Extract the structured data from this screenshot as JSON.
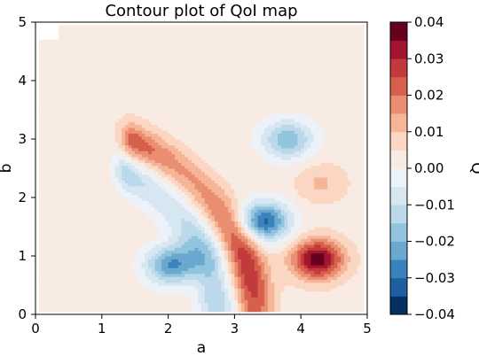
{
  "chart_data": {
    "type": "contour",
    "title": "Contour plot of QoI map",
    "xlabel": "a",
    "ylabel": "b",
    "xlim": [
      0,
      5
    ],
    "ylim": [
      0,
      5
    ],
    "x_ticks": [
      "0",
      "1",
      "2",
      "3",
      "4",
      "5"
    ],
    "y_ticks": [
      "0",
      "1",
      "2",
      "3",
      "4",
      "5"
    ],
    "colormap": "RdBu_r",
    "colorbar": {
      "label": "Q",
      "range": [
        -0.04,
        0.04
      ],
      "ticks": [
        "0.04",
        "0.03",
        "0.02",
        "0.01",
        "0.00",
        "−0.01",
        "−0.02",
        "−0.03",
        "−0.04"
      ],
      "levels": [
        -0.04,
        -0.035,
        -0.03,
        -0.025,
        -0.02,
        -0.015,
        -0.01,
        -0.005,
        0,
        0.005,
        0.01,
        0.015,
        0.02,
        0.025,
        0.03,
        0.035,
        0.04
      ]
    },
    "features": [
      {
        "kind": "ridge",
        "sign": "positive",
        "center_a": 0,
        "center_b": 0,
        "radius": 3.3,
        "width": 0.28,
        "peak": 0.026,
        "extent_a": [
          1.5,
          4.95
        ]
      },
      {
        "kind": "ridge",
        "sign": "negative",
        "center_a": 0,
        "center_b": 0,
        "radius": 2.75,
        "width": 0.3,
        "peak": -0.022,
        "extent_a": [
          1.4,
          4.95
        ]
      },
      {
        "kind": "blob",
        "sign": "positive",
        "a": 4.25,
        "b": 0.95,
        "peak": 0.036
      },
      {
        "kind": "blob",
        "sign": "negative",
        "a": 3.45,
        "b": 1.6,
        "peak": -0.034
      },
      {
        "kind": "blob",
        "sign": "negative",
        "a": 2.05,
        "b": 0.85,
        "peak": -0.028
      },
      {
        "kind": "blob",
        "sign": "negative",
        "a": 3.8,
        "b": 3.0,
        "peak": -0.022
      },
      {
        "kind": "blob",
        "sign": "positive",
        "a": 4.3,
        "b": 2.25,
        "peak": 0.008
      },
      {
        "kind": "blob",
        "sign": "positive",
        "a": 2.7,
        "b": 0.6,
        "peak": 0.006
      }
    ]
  }
}
